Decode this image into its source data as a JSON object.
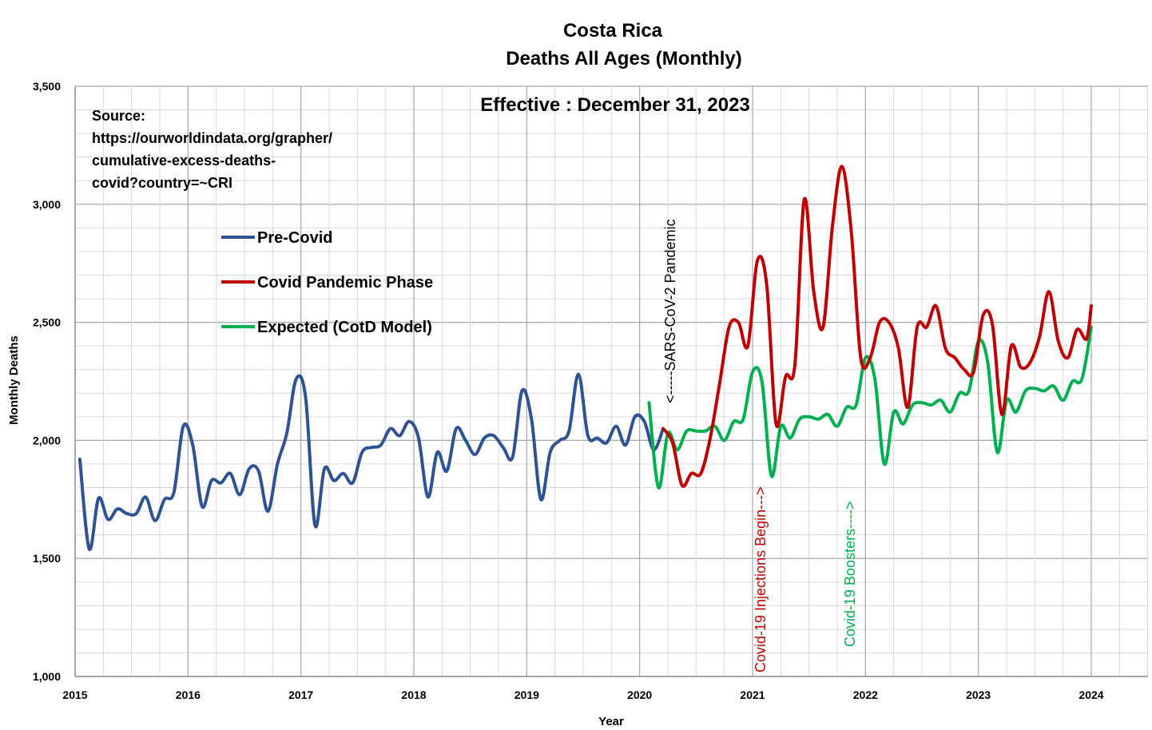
{
  "chart_data": {
    "type": "line",
    "title": "Costa Rica",
    "subtitle": "Deaths All Ages (Monthly)",
    "effective_note": "Effective : December 31, 2023",
    "source_lines": [
      "Source:",
      "https://ourworldindata.org/grapher/",
      "cumulative-excess-deaths-",
      "covid?country=~CRI"
    ],
    "xlabel": "Year",
    "ylabel": "Monthly Deaths",
    "xlim": [
      2015,
      2024.5
    ],
    "ylim": [
      1000,
      3500
    ],
    "x_ticks": [
      2015,
      2016,
      2017,
      2018,
      2019,
      2020,
      2021,
      2022,
      2023,
      2024
    ],
    "x_tick_labels": [
      "2015",
      "2016",
      "2017",
      "2018",
      "2019",
      "2020",
      "2021",
      "2022",
      "2023",
      "2024"
    ],
    "y_ticks": [
      1000,
      1500,
      2000,
      2500,
      3000,
      3500
    ],
    "y_tick_labels": [
      "1,000",
      "1,500",
      "2,000",
      "2,500",
      "3,000",
      "3,500"
    ],
    "grid": true,
    "legend_position": "upper-left",
    "series": [
      {
        "name": "Pre-Covid",
        "color": "#2E5395",
        "points": [
          [
            2015.042,
            1920
          ],
          [
            2015.125,
            1540
          ],
          [
            2015.208,
            1755
          ],
          [
            2015.292,
            1665
          ],
          [
            2015.375,
            1710
          ],
          [
            2015.458,
            1690
          ],
          [
            2015.542,
            1690
          ],
          [
            2015.625,
            1760
          ],
          [
            2015.708,
            1660
          ],
          [
            2015.792,
            1750
          ],
          [
            2015.875,
            1780
          ],
          [
            2015.958,
            2060
          ],
          [
            2016.042,
            1980
          ],
          [
            2016.125,
            1720
          ],
          [
            2016.208,
            1830
          ],
          [
            2016.292,
            1820
          ],
          [
            2016.375,
            1860
          ],
          [
            2016.458,
            1770
          ],
          [
            2016.542,
            1880
          ],
          [
            2016.625,
            1870
          ],
          [
            2016.708,
            1700
          ],
          [
            2016.792,
            1900
          ],
          [
            2016.875,
            2030
          ],
          [
            2016.958,
            2260
          ],
          [
            2017.042,
            2180
          ],
          [
            2017.125,
            1640
          ],
          [
            2017.208,
            1880
          ],
          [
            2017.292,
            1830
          ],
          [
            2017.375,
            1860
          ],
          [
            2017.458,
            1820
          ],
          [
            2017.542,
            1950
          ],
          [
            2017.625,
            1970
          ],
          [
            2017.708,
            1980
          ],
          [
            2017.792,
            2050
          ],
          [
            2017.875,
            2020
          ],
          [
            2017.958,
            2080
          ],
          [
            2018.042,
            2010
          ],
          [
            2018.125,
            1760
          ],
          [
            2018.208,
            1950
          ],
          [
            2018.292,
            1870
          ],
          [
            2018.375,
            2050
          ],
          [
            2018.458,
            2000
          ],
          [
            2018.542,
            1940
          ],
          [
            2018.625,
            2010
          ],
          [
            2018.708,
            2020
          ],
          [
            2018.792,
            1970
          ],
          [
            2018.875,
            1930
          ],
          [
            2018.958,
            2210
          ],
          [
            2019.042,
            2090
          ],
          [
            2019.125,
            1750
          ],
          [
            2019.208,
            1950
          ],
          [
            2019.292,
            2000
          ],
          [
            2019.375,
            2040
          ],
          [
            2019.458,
            2280
          ],
          [
            2019.542,
            2020
          ],
          [
            2019.625,
            2010
          ],
          [
            2019.708,
            1990
          ],
          [
            2019.792,
            2060
          ],
          [
            2019.875,
            1980
          ],
          [
            2019.958,
            2100
          ],
          [
            2020.042,
            2080
          ],
          [
            2020.125,
            1960
          ],
          [
            2020.208,
            2050
          ]
        ]
      },
      {
        "name": "Covid Pandemic Phase",
        "color": "#C00000",
        "points": [
          [
            2020.208,
            2050
          ],
          [
            2020.292,
            1990
          ],
          [
            2020.375,
            1810
          ],
          [
            2020.458,
            1860
          ],
          [
            2020.542,
            1860
          ],
          [
            2020.625,
            2010
          ],
          [
            2020.708,
            2240
          ],
          [
            2020.792,
            2480
          ],
          [
            2020.875,
            2500
          ],
          [
            2020.958,
            2400
          ],
          [
            2021.042,
            2760
          ],
          [
            2021.125,
            2660
          ],
          [
            2021.208,
            2070
          ],
          [
            2021.292,
            2270
          ],
          [
            2021.375,
            2320
          ],
          [
            2021.458,
            3020
          ],
          [
            2021.542,
            2630
          ],
          [
            2021.625,
            2480
          ],
          [
            2021.708,
            2910
          ],
          [
            2021.792,
            3160
          ],
          [
            2021.875,
            2880
          ],
          [
            2021.958,
            2350
          ],
          [
            2022.042,
            2350
          ],
          [
            2022.125,
            2500
          ],
          [
            2022.208,
            2500
          ],
          [
            2022.292,
            2390
          ],
          [
            2022.375,
            2140
          ],
          [
            2022.458,
            2480
          ],
          [
            2022.542,
            2480
          ],
          [
            2022.625,
            2570
          ],
          [
            2022.708,
            2390
          ],
          [
            2022.792,
            2350
          ],
          [
            2022.875,
            2300
          ],
          [
            2022.958,
            2290
          ],
          [
            2023.042,
            2530
          ],
          [
            2023.125,
            2490
          ],
          [
            2023.208,
            2110
          ],
          [
            2023.292,
            2400
          ],
          [
            2023.375,
            2310
          ],
          [
            2023.458,
            2330
          ],
          [
            2023.542,
            2440
          ],
          [
            2023.625,
            2630
          ],
          [
            2023.708,
            2420
          ],
          [
            2023.792,
            2350
          ],
          [
            2023.875,
            2470
          ],
          [
            2023.958,
            2430
          ],
          [
            2024.0,
            2570
          ]
        ]
      },
      {
        "name": "Expected (CotD Model)",
        "color": "#00B050",
        "points": [
          [
            2020.083,
            2160
          ],
          [
            2020.167,
            1800
          ],
          [
            2020.25,
            2030
          ],
          [
            2020.333,
            1960
          ],
          [
            2020.417,
            2040
          ],
          [
            2020.5,
            2040
          ],
          [
            2020.583,
            2040
          ],
          [
            2020.667,
            2060
          ],
          [
            2020.75,
            2000
          ],
          [
            2020.833,
            2080
          ],
          [
            2020.917,
            2090
          ],
          [
            2021.0,
            2290
          ],
          [
            2021.083,
            2250
          ],
          [
            2021.167,
            1850
          ],
          [
            2021.25,
            2060
          ],
          [
            2021.333,
            2010
          ],
          [
            2021.417,
            2090
          ],
          [
            2021.5,
            2100
          ],
          [
            2021.583,
            2090
          ],
          [
            2021.667,
            2110
          ],
          [
            2021.75,
            2060
          ],
          [
            2021.833,
            2140
          ],
          [
            2021.917,
            2150
          ],
          [
            2022.0,
            2350
          ],
          [
            2022.083,
            2260
          ],
          [
            2022.167,
            1900
          ],
          [
            2022.25,
            2120
          ],
          [
            2022.333,
            2070
          ],
          [
            2022.417,
            2150
          ],
          [
            2022.5,
            2160
          ],
          [
            2022.583,
            2150
          ],
          [
            2022.667,
            2170
          ],
          [
            2022.75,
            2120
          ],
          [
            2022.833,
            2200
          ],
          [
            2022.917,
            2210
          ],
          [
            2023.0,
            2420
          ],
          [
            2023.083,
            2330
          ],
          [
            2023.167,
            1950
          ],
          [
            2023.25,
            2170
          ],
          [
            2023.333,
            2120
          ],
          [
            2023.417,
            2210
          ],
          [
            2023.5,
            2220
          ],
          [
            2023.583,
            2210
          ],
          [
            2023.667,
            2230
          ],
          [
            2023.75,
            2170
          ],
          [
            2023.833,
            2250
          ],
          [
            2023.917,
            2260
          ],
          [
            2024.0,
            2480
          ]
        ]
      }
    ],
    "annotations": [
      {
        "text": "<-----SARS-CoV-2 Pandemic",
        "color": "#000000"
      },
      {
        "text": "Covid-19 Injections Begin--->",
        "color": "#C00000"
      },
      {
        "text": "Covid-19 Boosters---->",
        "color": "#00B050"
      }
    ]
  }
}
